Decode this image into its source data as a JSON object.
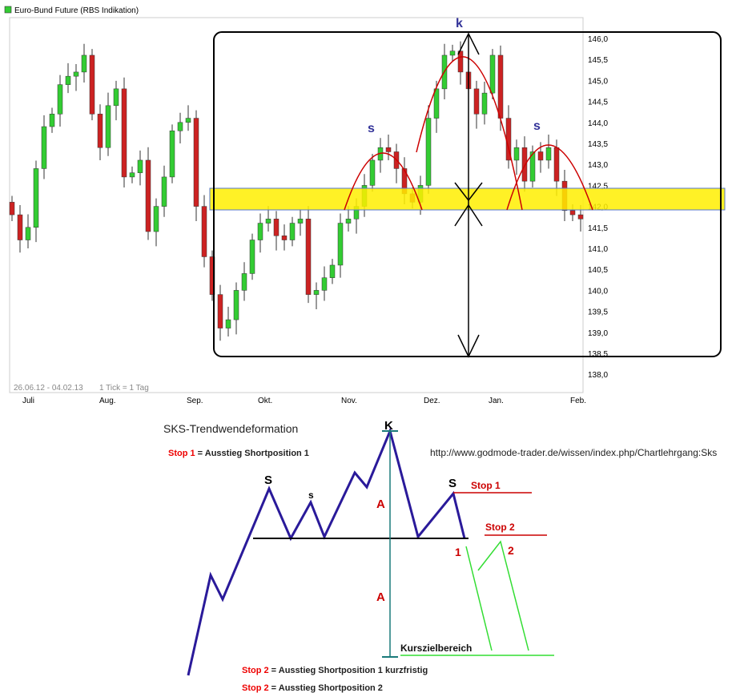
{
  "chart_data": {
    "type": "candlestick",
    "title": "Euro-Bund Future (RBS Indikation)",
    "date_range": "26.06.12 - 04.02.13",
    "tick_note": "1 Tick = 1 Tag",
    "x_tick_labels": [
      "Juli",
      "Aug.",
      "Sep.",
      "Okt.",
      "Nov.",
      "Dez.",
      "Jan.",
      "Feb."
    ],
    "y_tick_labels": [
      "146,0",
      "145,5",
      "145,0",
      "144,5",
      "144,0",
      "143,5",
      "143,0",
      "142,5",
      "142,0",
      "141,5",
      "141,0",
      "140,5",
      "140,0",
      "139,5",
      "139,0",
      "138,5",
      "138,0"
    ],
    "ylim": [
      138.0,
      146.0
    ],
    "closes_approx": [
      141.8,
      141.2,
      141.5,
      142.9,
      143.9,
      144.2,
      144.9,
      145.1,
      145.2,
      145.6,
      144.2,
      143.4,
      144.4,
      144.8,
      142.7,
      142.8,
      143.1,
      141.4,
      142.0,
      142.7,
      143.8,
      144.0,
      144.1,
      142.0,
      140.8,
      139.9,
      139.1,
      139.3,
      140.0,
      140.4,
      141.2,
      141.6,
      141.7,
      141.3,
      141.2,
      141.6,
      141.7,
      139.9,
      140.0,
      140.3,
      140.6,
      141.6,
      141.7,
      142.0,
      142.5,
      143.1,
      143.4,
      143.3,
      142.9,
      142.3,
      142.1,
      142.5,
      144.1,
      144.8,
      145.6,
      145.7,
      145.2,
      144.8,
      144.2,
      144.7,
      145.6,
      144.1,
      143.1,
      143.4,
      142.6,
      143.3,
      143.1,
      143.4,
      142.6,
      141.9,
      141.8,
      141.7
    ],
    "neckline_band": [
      141.9,
      142.45
    ],
    "colors": {
      "up": "#33cc33",
      "down": "#cc2222",
      "band": "#ffee00",
      "annotation": "#cc0000",
      "labels": "#333399"
    },
    "annotations": {
      "head": "k",
      "shoulder_left": "s",
      "shoulder_right": "s"
    }
  },
  "diagram": {
    "title": "SKS-Trendwendeformation",
    "url": "http://www.godmode-trader.de/wissen/index.php/Chartlehrgang:Sks",
    "head": "K",
    "shoulder_big": "S",
    "shoulder_small": "s",
    "shoulder_right": "S",
    "a_label": "A",
    "one": "1",
    "two": "2",
    "stop1": "Stop 1",
    "stop2": "Stop 2",
    "target": "Kurszielbereich",
    "legend": [
      {
        "key": "Stop 1",
        "text": " = Ausstieg Shortposition 1"
      },
      {
        "key": "Stop 2",
        "text": " = Ausstieg Shortposition 1 kurzfristig"
      },
      {
        "key": "Stop 2",
        "text": " = Ausstieg Shortposition 2"
      }
    ]
  }
}
